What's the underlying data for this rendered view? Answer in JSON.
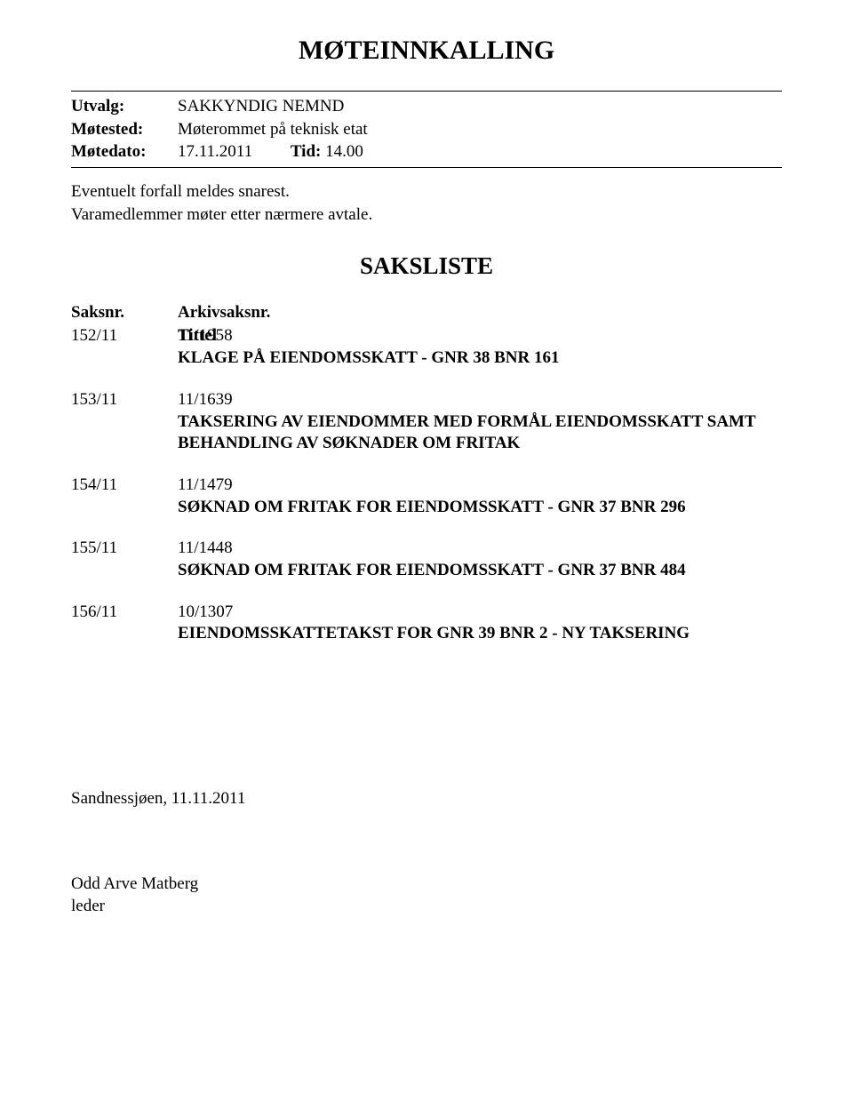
{
  "title": "MØTEINNKALLING",
  "meta": {
    "utvalg_label": "Utvalg:",
    "utvalg_value": "SAKKYNDIG NEMND",
    "motested_label": "Møtested:",
    "motested_value": "Møterommet på teknisk etat",
    "motedato_label": "Møtedato:",
    "motedato_value": "17.11.2011",
    "tid_label": "Tid:",
    "tid_value": "14.00"
  },
  "intro_line1": "Eventuelt forfall meldes snarest.",
  "intro_line2": "Varamedlemmer møter etter nærmere avtale.",
  "sakliste_title": "SAKSLISTE",
  "headers": {
    "saksnr": "Saksnr.",
    "arkiv": "Arkivsaksnr.",
    "tittel": "Tittel"
  },
  "items": [
    {
      "saksnr": "152/11",
      "arkiv": "11/1958",
      "title": "KLAGE PÅ EIENDOMSSKATT - GNR 38 BNR 161"
    },
    {
      "saksnr": "153/11",
      "arkiv": "11/1639",
      "title": "TAKSERING AV EIENDOMMER MED FORMÅL EIENDOMSSKATT SAMT BEHANDLING AV SØKNADER OM FRITAK"
    },
    {
      "saksnr": "154/11",
      "arkiv": "11/1479",
      "title": "SØKNAD OM FRITAK FOR  EIENDOMSSKATT - GNR 37 BNR 296"
    },
    {
      "saksnr": "155/11",
      "arkiv": "11/1448",
      "title": "SØKNAD OM FRITAK FOR EIENDOMSSKATT - GNR 37 BNR 484"
    },
    {
      "saksnr": "156/11",
      "arkiv": "10/1307",
      "title": "EIENDOMSSKATTETAKST FOR GNR 39 BNR 2 - NY TAKSERING"
    }
  ],
  "footer_location_date": "Sandnessjøen, 11.11.2011",
  "signature_name": "Odd Arve Matberg",
  "signature_title": "leder"
}
